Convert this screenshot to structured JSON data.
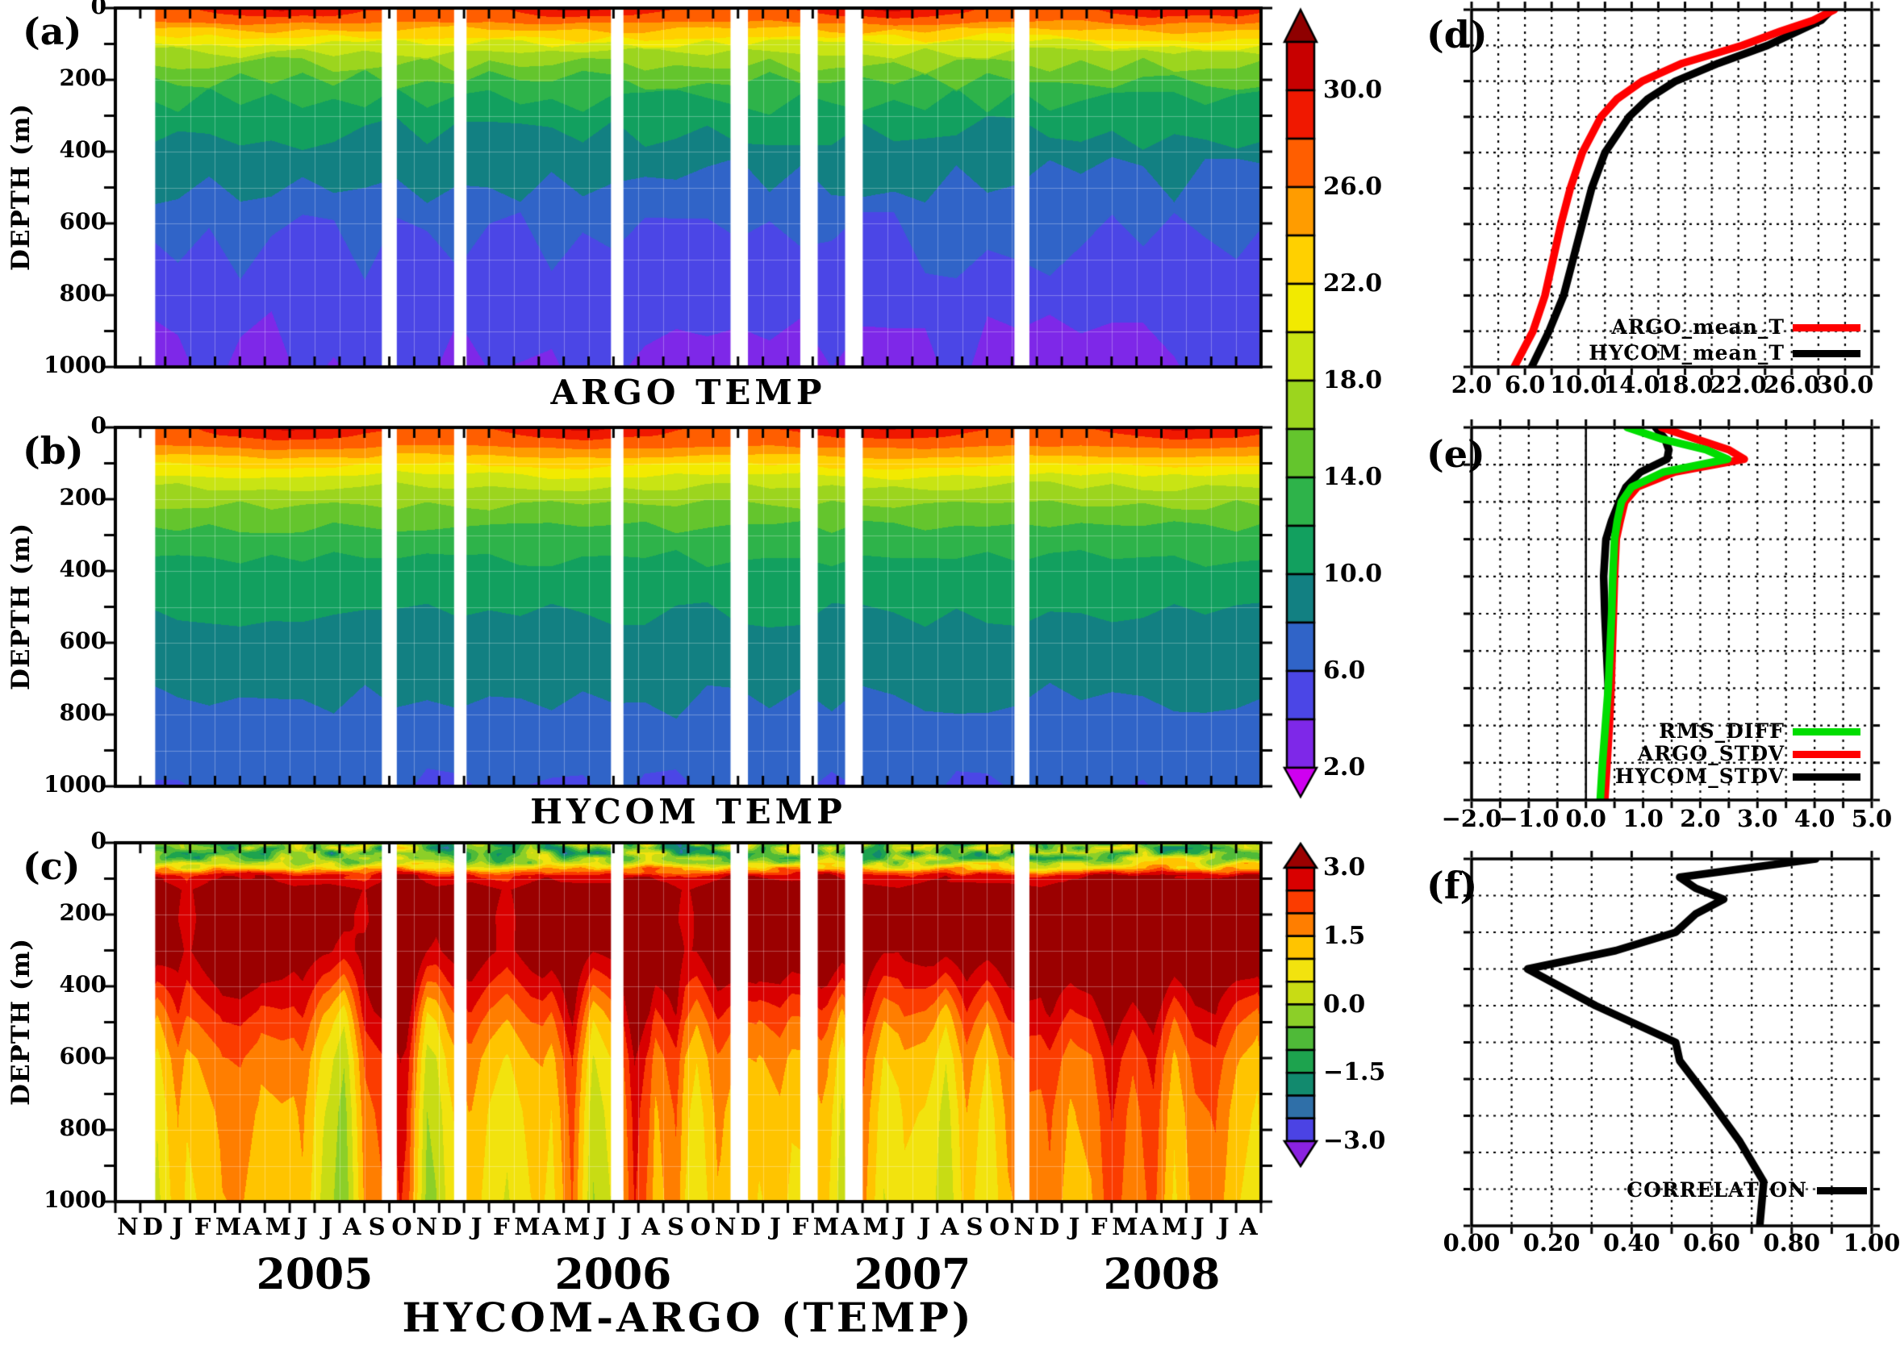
{
  "figure": {
    "panel_letters": {
      "a": "(a)",
      "b": "(b)",
      "c": "(c)",
      "d": "(d)",
      "e": "(e)",
      "f": "(f)"
    },
    "titles": {
      "a": "ARGO TEMP",
      "b": "HYCOM TEMP",
      "c": "HYCOM-ARGO (TEMP)"
    },
    "depth_axis": {
      "label": "DEPTH (m)",
      "tick_labels": [
        "0",
        "200",
        "400",
        "600",
        "800",
        "1000"
      ],
      "tick_values": [
        0,
        200,
        400,
        600,
        800,
        1000
      ],
      "minor_step_m": 100,
      "range_m": [
        0,
        1000
      ]
    },
    "time_axis": {
      "month_labels": [
        "N",
        "D",
        "J",
        "F",
        "M",
        "A",
        "M",
        "J",
        "J",
        "A",
        "S",
        "O",
        "N",
        "D",
        "J",
        "F",
        "M",
        "A",
        "M",
        "J",
        "J",
        "A",
        "S",
        "O",
        "N",
        "D",
        "J",
        "F",
        "M",
        "A",
        "M",
        "J",
        "J",
        "A",
        "S",
        "O",
        "N",
        "D",
        "J",
        "F",
        "M",
        "A",
        "M",
        "J",
        "J",
        "A"
      ],
      "year_labels": [
        "2005",
        "2006",
        "2007",
        "2008"
      ],
      "n_months": 46
    }
  },
  "colorbars": {
    "temp": {
      "labels": [
        "30.0",
        "26.0",
        "22.0",
        "18.0",
        "14.0",
        "10.0",
        "6.0",
        "2.0"
      ],
      "label_values": [
        30,
        26,
        22,
        18,
        14,
        10,
        6,
        2
      ],
      "value_range": [
        2,
        32
      ],
      "segment_step": 2.0,
      "segments_top_to_bottom": [
        "#c80000",
        "#f01800",
        "#ff5e00",
        "#ff9c00",
        "#ffd000",
        "#f2ea00",
        "#c8e414",
        "#9cd51e",
        "#64c52d",
        "#2eb34a",
        "#12a05f",
        "#128082",
        "#3064c8",
        "#4b46e6",
        "#7e28e8"
      ],
      "arrow_top": "#8f0000",
      "arrow_bottom": "#cf00f0"
    },
    "diff": {
      "labels": [
        "3.0",
        "1.5",
        "0.0",
        "−1.5",
        "−3.0"
      ],
      "label_values": [
        3,
        1.5,
        0,
        -1.5,
        -3
      ],
      "value_range": [
        -3,
        3
      ],
      "segment_step": 0.5,
      "segments_top_to_bottom": [
        "#d90000",
        "#fb3c00",
        "#ff7e00",
        "#ffc400",
        "#f2e30e",
        "#c8dc14",
        "#8ccf28",
        "#4fba38",
        "#1da34e",
        "#128a6e",
        "#2f6fa8",
        "#4b43e4"
      ],
      "arrow_top": "#9b0000",
      "arrow_bottom": "#8a22e0"
    }
  },
  "chart_data": [
    {
      "id": "panel-a",
      "type": "contour",
      "title": "ARGO TEMP",
      "ylabel": "DEPTH (m)",
      "ylim": [
        0,
        1000
      ],
      "x_months": 46,
      "surface_temp": {
        "mean": 28.8,
        "seasonal_amp": 1.7,
        "peak_month_index": 7,
        "noise": 0.5
      },
      "isotherm_depths_m": [
        [
          26,
          40
        ],
        [
          24,
          60
        ],
        [
          22,
          80
        ],
        [
          20,
          100
        ],
        [
          18,
          125
        ],
        [
          16,
          158
        ],
        [
          14,
          200
        ],
        [
          12,
          260
        ],
        [
          10,
          345
        ],
        [
          8,
          480
        ],
        [
          6,
          660
        ],
        [
          4,
          980
        ]
      ],
      "wiggle": 0.15,
      "level_step_c": 2.0,
      "data_start_month": 1.6,
      "gaps_months": [
        [
          10.7,
          11.3
        ],
        [
          13.6,
          14.1
        ],
        [
          19.9,
          20.4
        ],
        [
          24.7,
          25.4
        ],
        [
          27.5,
          28.2
        ],
        [
          29.3,
          30.0
        ],
        [
          36.1,
          36.7
        ]
      ]
    },
    {
      "id": "panel-b",
      "type": "contour",
      "title": "HYCOM TEMP",
      "ylabel": "DEPTH (m)",
      "ylim": [
        0,
        1000
      ],
      "x_months": 46,
      "surface_temp": {
        "mean": 28.9,
        "seasonal_amp": 1.5,
        "peak_month_index": 7,
        "noise": 0.3
      },
      "isotherm_depths_m": [
        [
          26,
          55
        ],
        [
          24,
          80
        ],
        [
          22,
          105
        ],
        [
          20,
          132
        ],
        [
          18,
          165
        ],
        [
          16,
          215
        ],
        [
          14,
          275
        ],
        [
          12,
          365
        ],
        [
          10,
          520
        ],
        [
          8,
          760
        ],
        [
          6,
          1020
        ],
        [
          4,
          1450
        ]
      ],
      "wiggle": 0.07,
      "level_step_c": 2.0,
      "data_start_month": 1.6,
      "gaps_months": [
        [
          10.7,
          11.3
        ],
        [
          13.6,
          14.1
        ],
        [
          19.9,
          20.4
        ],
        [
          24.7,
          25.4
        ],
        [
          27.5,
          28.2
        ],
        [
          29.3,
          30.0
        ],
        [
          36.1,
          36.7
        ]
      ]
    },
    {
      "id": "panel-c",
      "type": "contour-diff",
      "title": "HYCOM-ARGO (TEMP)",
      "ylabel": "DEPTH (m)",
      "ylim": [
        0,
        1000
      ],
      "x_months": 46,
      "diff_profile_depth_value": [
        [
          0,
          -0.4
        ],
        [
          30,
          -0.8
        ],
        [
          50,
          -0.2
        ],
        [
          70,
          1.2
        ],
        [
          90,
          2.6
        ],
        [
          130,
          3.4
        ],
        [
          300,
          3.4
        ],
        [
          400,
          2.7
        ],
        [
          500,
          2.0
        ],
        [
          600,
          1.5
        ],
        [
          750,
          1.2
        ],
        [
          1000,
          1.0
        ]
      ],
      "top_patch_noise_amp": 2.0,
      "column_noise_amp": 0.8,
      "deep_streak_amp": 1.2,
      "level_step_c": 0.5,
      "data_start_month": 1.6,
      "gaps_months": [
        [
          10.7,
          11.3
        ],
        [
          13.6,
          14.1
        ],
        [
          19.9,
          20.4
        ],
        [
          24.7,
          25.4
        ],
        [
          27.5,
          28.2
        ],
        [
          29.3,
          30.0
        ],
        [
          36.1,
          36.7
        ]
      ]
    },
    {
      "id": "panel-d",
      "type": "line",
      "ylim": [
        0,
        1000
      ],
      "xlim": [
        2,
        32
      ],
      "xtick_labels": [
        "2.0",
        "6.0",
        "10.0",
        "14.0",
        "18.0",
        "22.0",
        "26.0",
        "30.0"
      ],
      "xtick_values": [
        2,
        6,
        10,
        14,
        18,
        22,
        26,
        30
      ],
      "grid_x_step": 2,
      "grid_y_step_m": 100,
      "legend_position": "lower right",
      "series": [
        {
          "name": "ARGO_mean_T",
          "color": "#ff0000",
          "depths": [
            0,
            30,
            60,
            100,
            150,
            200,
            250,
            300,
            400,
            500,
            600,
            700,
            800,
            900,
            1000
          ],
          "values": [
            29.2,
            27.6,
            25.2,
            22.3,
            17.8,
            14.8,
            12.9,
            11.7,
            10.3,
            9.4,
            8.7,
            8.1,
            7.5,
            6.6,
            5.2
          ]
        },
        {
          "name": "HYCOM_mean_T",
          "color": "#000000",
          "depths": [
            0,
            30,
            60,
            100,
            150,
            200,
            250,
            300,
            400,
            500,
            600,
            700,
            800,
            900,
            1000
          ],
          "values": [
            29.0,
            28.2,
            26.5,
            24.2,
            20.5,
            17.3,
            15.2,
            13.8,
            12.0,
            11.0,
            10.3,
            9.6,
            8.9,
            7.8,
            6.5
          ]
        }
      ]
    },
    {
      "id": "panel-e",
      "type": "line",
      "ylim": [
        0,
        1000
      ],
      "xlim": [
        -2,
        5
      ],
      "xtick_labels": [
        "−2.0",
        "−1.0",
        "0.0",
        "1.0",
        "2.0",
        "3.0",
        "4.0",
        "5.0"
      ],
      "xtick_values": [
        -2,
        -1,
        0,
        1,
        2,
        3,
        4,
        5
      ],
      "grid_x_step": 0.5,
      "grid_y_step_m": 100,
      "zero_line": 0,
      "legend_position": "middle right",
      "series": [
        {
          "name": "RMS_DIFF",
          "color": "#00dd00",
          "depths": [
            0,
            30,
            60,
            85,
            120,
            160,
            200,
            250,
            300,
            400,
            500,
            600,
            700,
            800,
            900,
            1000
          ],
          "values": [
            0.72,
            1.3,
            2.1,
            2.48,
            1.35,
            0.8,
            0.62,
            0.55,
            0.5,
            0.47,
            0.45,
            0.42,
            0.39,
            0.34,
            0.29,
            0.25
          ]
        },
        {
          "name": "ARGO_STDV",
          "color": "#ff0000",
          "depths": [
            0,
            30,
            60,
            85,
            120,
            160,
            200,
            250,
            300,
            400,
            500,
            600,
            700,
            800,
            900,
            1000
          ],
          "values": [
            1.32,
            1.9,
            2.5,
            2.77,
            1.55,
            0.9,
            0.68,
            0.6,
            0.53,
            0.5,
            0.48,
            0.46,
            0.44,
            0.41,
            0.37,
            0.33
          ]
        },
        {
          "name": "HYCOM_STDV",
          "color": "#000000",
          "depths": [
            0,
            30,
            60,
            85,
            120,
            160,
            200,
            250,
            300,
            400,
            500,
            600,
            700,
            800,
            900,
            1000
          ],
          "values": [
            1.22,
            1.38,
            1.45,
            1.42,
            0.95,
            0.7,
            0.58,
            0.45,
            0.35,
            0.31,
            0.33,
            0.36,
            0.39,
            0.37,
            0.33,
            0.3
          ]
        }
      ]
    },
    {
      "id": "panel-f",
      "type": "line",
      "ylim": [
        0,
        1000
      ],
      "xlim": [
        0,
        1
      ],
      "xtick_labels": [
        "0.00",
        "0.20",
        "0.40",
        "0.60",
        "0.80",
        "1.00"
      ],
      "xtick_values": [
        0,
        0.2,
        0.4,
        0.6,
        0.8,
        1.0
      ],
      "grid_x_step": 0.1,
      "grid_y_step_m": 100,
      "legend_position": "lower right",
      "series": [
        {
          "name": "CORRELATION",
          "color": "#000000",
          "depths": [
            0,
            50,
            80,
            110,
            150,
            200,
            250,
            300,
            400,
            500,
            550,
            650,
            770,
            880,
            1000
          ],
          "values": [
            0.86,
            0.52,
            0.56,
            0.63,
            0.56,
            0.51,
            0.36,
            0.14,
            0.31,
            0.51,
            0.52,
            0.59,
            0.67,
            0.73,
            0.72
          ]
        }
      ]
    }
  ]
}
